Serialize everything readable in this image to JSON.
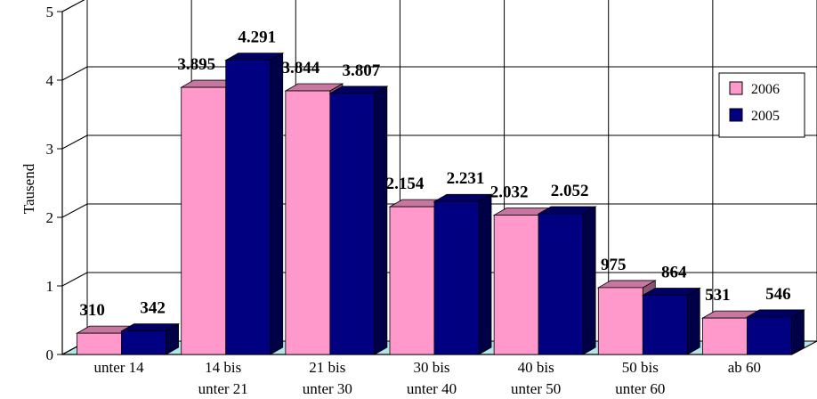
{
  "chart_data": {
    "type": "bar",
    "title": "",
    "xlabel": "",
    "ylabel": "Tausend",
    "ylim": [
      0,
      5
    ],
    "yticks": [
      "0",
      "1",
      "2",
      "3",
      "4",
      "5"
    ],
    "grid": true,
    "legend_position": "right",
    "categories": [
      [
        "unter 14"
      ],
      [
        "14 bis",
        "unter 21"
      ],
      [
        "21 bis",
        "unter 30"
      ],
      [
        "30 bis",
        "unter 40"
      ],
      [
        "40 bis",
        "unter 50"
      ],
      [
        "50 bis",
        "unter 60"
      ],
      [
        "ab 60"
      ]
    ],
    "series": [
      {
        "name": "2006",
        "color": "#ff99cc",
        "values": [
          0.31,
          3.895,
          3.844,
          2.154,
          2.032,
          0.975,
          0.531
        ],
        "labels": [
          "310",
          "3.895",
          "3.844",
          "2.154",
          "2.032",
          "975",
          "531"
        ]
      },
      {
        "name": "2005",
        "color": "#000080",
        "values": [
          0.342,
          4.291,
          3.807,
          2.231,
          2.052,
          0.864,
          0.546
        ],
        "labels": [
          "342",
          "4.291",
          "3.807",
          "2.231",
          "2.052",
          "864",
          "546"
        ]
      }
    ]
  }
}
